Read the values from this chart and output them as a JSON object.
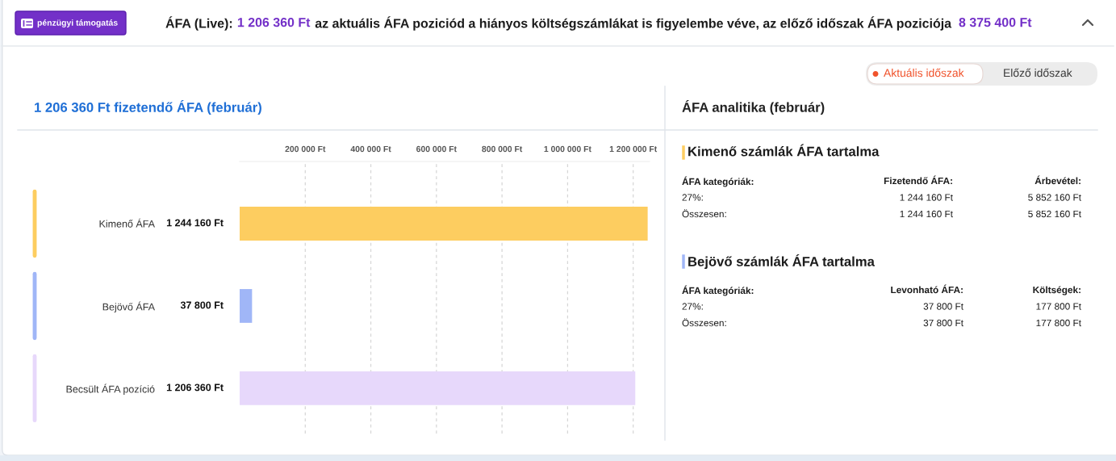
{
  "chart_data": [
    {
      "type": "other",
      "annotations": [
        "pénzügyi támogatás",
        "ÁFA (Live):",
        "1 206 360 Ft",
        "az aktuális ÁFA poziciód a hiányos költségszámlákat is figyelembe véve, az előző időszak ÁFA poziciója",
        "8 375 400 Ft",
        "Aktuális időszak",
        "Előző időszak"
      ]
    },
    {
      "type": "bar",
      "orientation": "horizontal",
      "title": "1 206 360 Ft fizetendő ÁFA (február)",
      "categories": [
        "Kimenő ÁFA",
        "Bejövő ÁFA",
        "Becsült ÁFA pozíció"
      ],
      "values": [
        1244160,
        37800,
        1206360
      ],
      "colors": [
        "#fdcd60",
        "#a0b6f7",
        "#e7d8fb"
      ],
      "value_labels": [
        "1 244 160 Ft",
        "37 800 Ft",
        "1 206 360 Ft"
      ],
      "xlim": [
        0,
        1250000
      ],
      "xticks": [
        {
          "value": 200000,
          "label": "200 000 Ft"
        },
        {
          "value": 400000,
          "label": "400 000 Ft"
        },
        {
          "value": 600000,
          "label": "600 000 Ft"
        },
        {
          "value": 800000,
          "label": "800 000 Ft"
        },
        {
          "value": 1000000,
          "label": "1 000 000 Ft"
        },
        {
          "value": 1200000,
          "label": "1 200 000 Ft"
        }
      ],
      "grid": "x"
    },
    {
      "type": "other",
      "title": "ÁFA analitika (február)",
      "annotations": [
        "Kimenő számlák ÁFA tartalma",
        "ÁFA kategóriák:",
        "Fizetendő ÁFA:",
        "Árbevétel:",
        "27%:",
        "1 244 160 Ft",
        "5 852 160 Ft",
        "Összesen:",
        "1 244 160 Ft",
        "5 852 160 Ft",
        "Bejövő számlák ÁFA tartalma",
        "ÁFA kategóriák:",
        "Levonható ÁFA:",
        "Költségek:",
        "27%:",
        "37 800 Ft",
        "177 800 Ft",
        "Összesen:",
        "37 800 Ft",
        "177 800 Ft"
      ]
    }
  ]
}
